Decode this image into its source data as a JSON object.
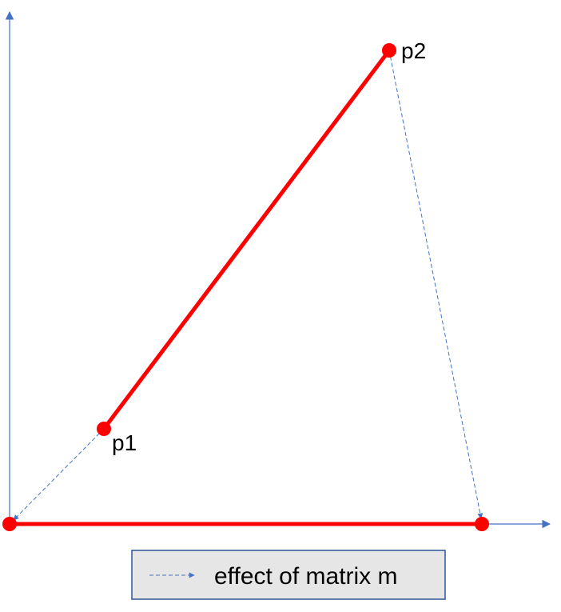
{
  "diagram": {
    "points": {
      "p1": {
        "label": "p1"
      },
      "p2": {
        "label": "p2"
      }
    },
    "legend": {
      "label": "effect of matrix m"
    },
    "colors": {
      "segment": "#ff0000",
      "transform_arrow": "#4472c4",
      "axis": "#4472c4",
      "legend_fill": "#e7e6e6",
      "legend_border": "#2f5597"
    }
  }
}
